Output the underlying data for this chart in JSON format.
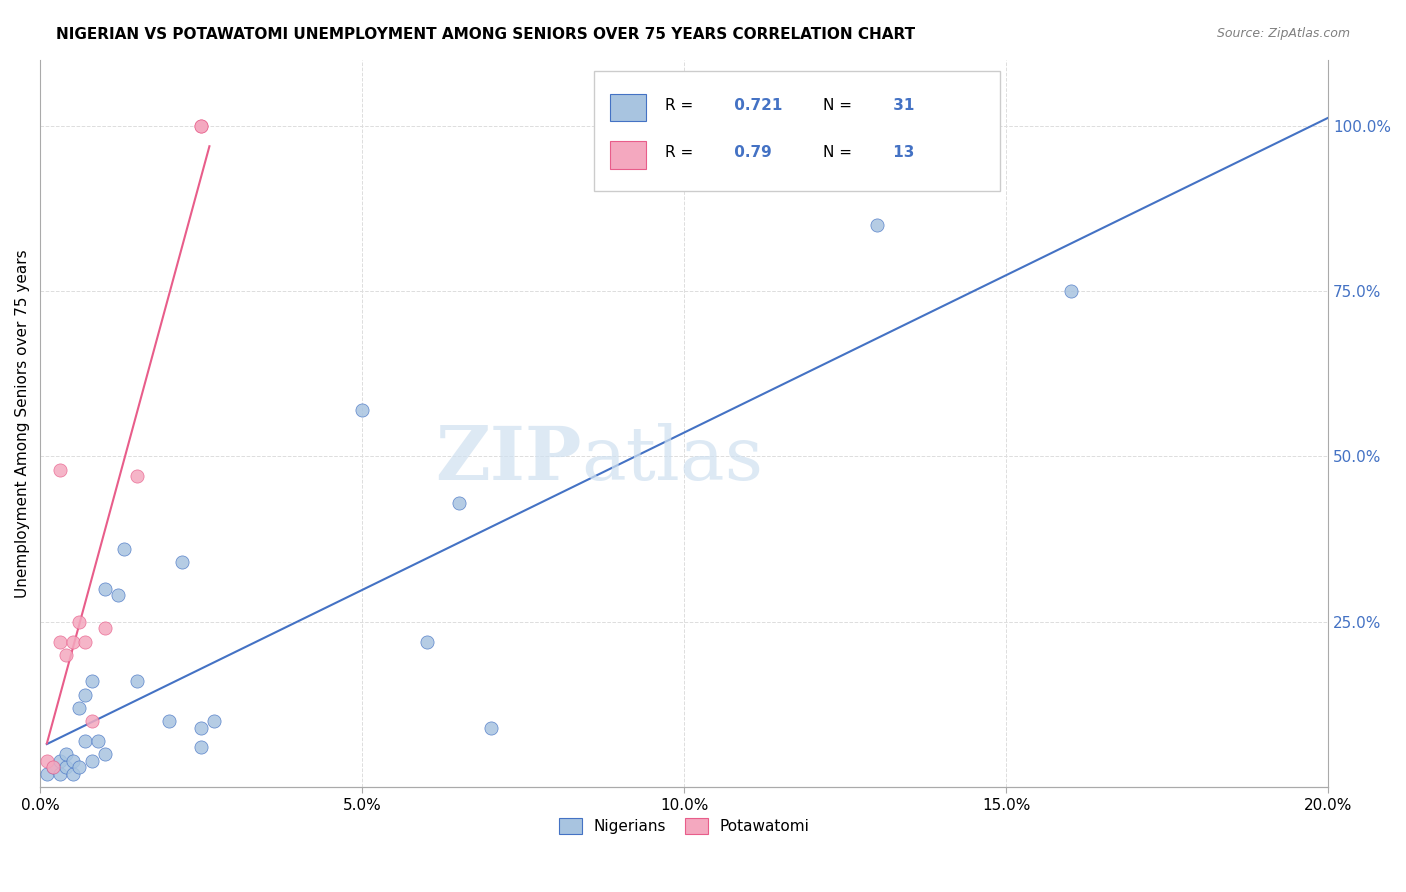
{
  "title": "NIGERIAN VS POTAWATOMI UNEMPLOYMENT AMONG SENIORS OVER 75 YEARS CORRELATION CHART",
  "source": "Source: ZipAtlas.com",
  "ylabel": "Unemployment Among Seniors over 75 years",
  "x_range": [
    0.0,
    0.2
  ],
  "y_range": [
    0.0,
    1.1
  ],
  "nigerian_color": "#a8c4e0",
  "potawatomi_color": "#f4a8bf",
  "nigerian_line_color": "#4472c4",
  "potawatomi_line_color": "#e85d8a",
  "R_nigerian": 0.721,
  "N_nigerian": 31,
  "R_potawatomi": 0.79,
  "N_potawatomi": 13,
  "nigerian_x": [
    0.001,
    0.002,
    0.003,
    0.003,
    0.004,
    0.004,
    0.005,
    0.005,
    0.006,
    0.006,
    0.007,
    0.007,
    0.008,
    0.008,
    0.009,
    0.01,
    0.01,
    0.012,
    0.013,
    0.015,
    0.02,
    0.022,
    0.025,
    0.025,
    0.027,
    0.05,
    0.06,
    0.065,
    0.07,
    0.13,
    0.16
  ],
  "nigerian_y": [
    0.02,
    0.03,
    0.04,
    0.02,
    0.03,
    0.05,
    0.02,
    0.04,
    0.03,
    0.12,
    0.14,
    0.07,
    0.04,
    0.16,
    0.07,
    0.05,
    0.3,
    0.29,
    0.36,
    0.16,
    0.1,
    0.34,
    0.09,
    0.06,
    0.1,
    0.57,
    0.22,
    0.43,
    0.09,
    0.85,
    0.75
  ],
  "potawatomi_x": [
    0.001,
    0.002,
    0.003,
    0.003,
    0.004,
    0.005,
    0.006,
    0.007,
    0.008,
    0.01,
    0.015,
    0.025,
    0.025
  ],
  "potawatomi_y": [
    0.04,
    0.03,
    0.48,
    0.22,
    0.2,
    0.22,
    0.25,
    0.22,
    0.1,
    0.24,
    0.47,
    1.0,
    1.0
  ],
  "grid_color": "#dddddd",
  "background_color": "#ffffff"
}
